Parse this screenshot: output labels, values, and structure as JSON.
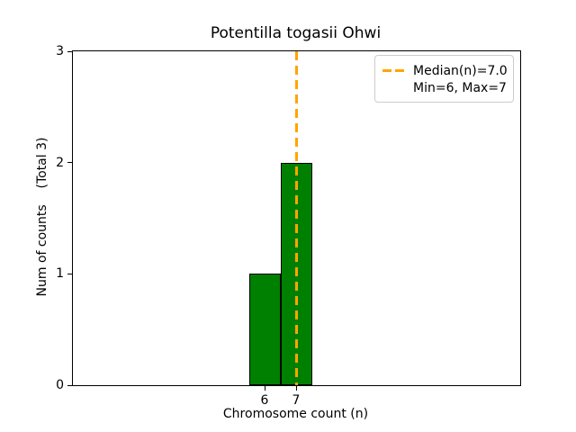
{
  "figure_title": "Potentilla togasii Ohwi",
  "chart_data": {
    "type": "bar",
    "title": "Potentilla togasii Ohwi",
    "xlabel": "Chromosome count (n)",
    "ylabel": "Num of counts",
    "ylabel_annotation": "(Total 3)",
    "ylabel_display": "Num of counts    (Total 3)",
    "categories": [
      6,
      7
    ],
    "values": [
      1,
      2
    ],
    "total_counts": 3,
    "xticks": [
      6,
      7
    ],
    "yticks": [
      0,
      1,
      2,
      3
    ],
    "ylim": [
      0,
      3
    ],
    "grid": false,
    "bar_color": "#008000",
    "bar_edge_color": "#000000",
    "median_line": {
      "value": 7.0,
      "color": "#FFA500",
      "style": "dashed"
    },
    "legend": {
      "position": "upper right",
      "entries": [
        {
          "label": "Median(n)=7.0",
          "marker": "dashed-line",
          "color": "#FFA500"
        },
        {
          "label": "Min=6, Max=7",
          "marker": "none"
        }
      ]
    },
    "stats": {
      "median": 7.0,
      "min": 6,
      "max": 7
    }
  }
}
